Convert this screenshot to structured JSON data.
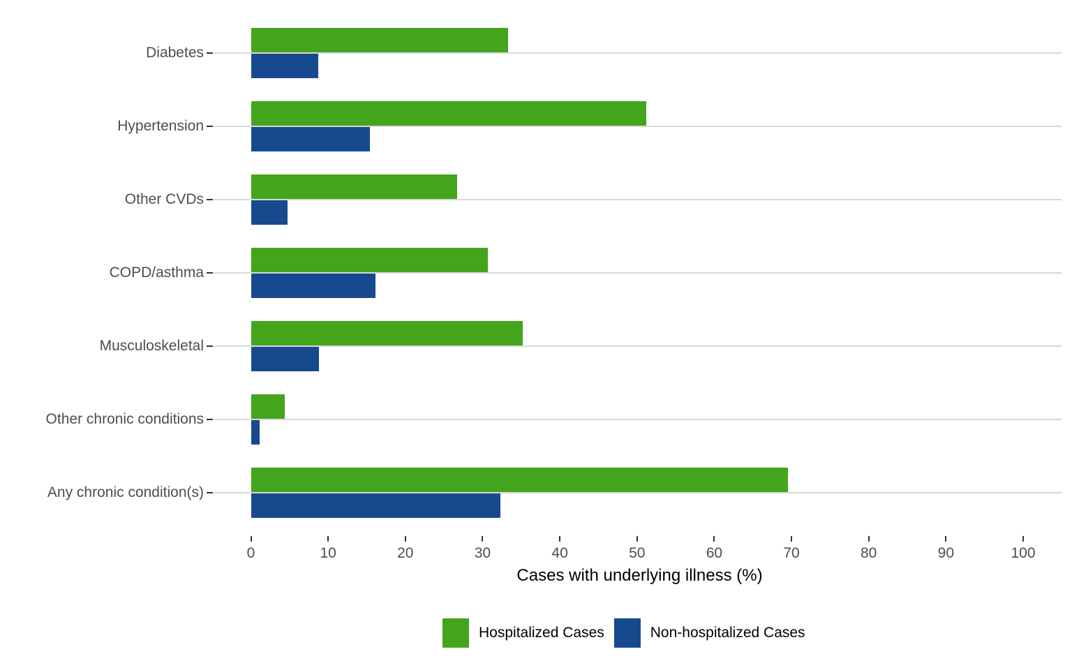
{
  "chart_data": {
    "type": "bar",
    "orientation": "horizontal",
    "title": "",
    "xlabel": "Cases with underlying illness (%)",
    "ylabel": "",
    "xlim": [
      0,
      105
    ],
    "x_ticks": [
      0,
      10,
      20,
      30,
      40,
      50,
      60,
      70,
      80,
      90,
      100
    ],
    "grid": "horizontal-only",
    "legend_position": "bottom",
    "categories": [
      "Diabetes",
      "Hypertension",
      "Other CVDs",
      "COPD/asthma",
      "Musculoskeletal",
      "Other chronic conditions",
      "Any chronic condition(s)"
    ],
    "series": [
      {
        "name": "Hospitalized Cases",
        "color": "#44a51d",
        "values": [
          33.3,
          51.2,
          26.7,
          30.7,
          35.2,
          4.4,
          69.5
        ]
      },
      {
        "name": "Non-hospitalized Cases",
        "color": "#17498e",
        "values": [
          8.7,
          15.4,
          4.7,
          16.1,
          8.8,
          1.1,
          32.3
        ]
      }
    ]
  },
  "colors": {
    "background": "#ffffff",
    "hospitalized": "#44a51d",
    "non_hospitalized": "#17498e",
    "gridline": "#d8d8d8",
    "axis_text": "#4d4d4d",
    "tick_mark": "#333333",
    "axis_title": "#000000"
  }
}
